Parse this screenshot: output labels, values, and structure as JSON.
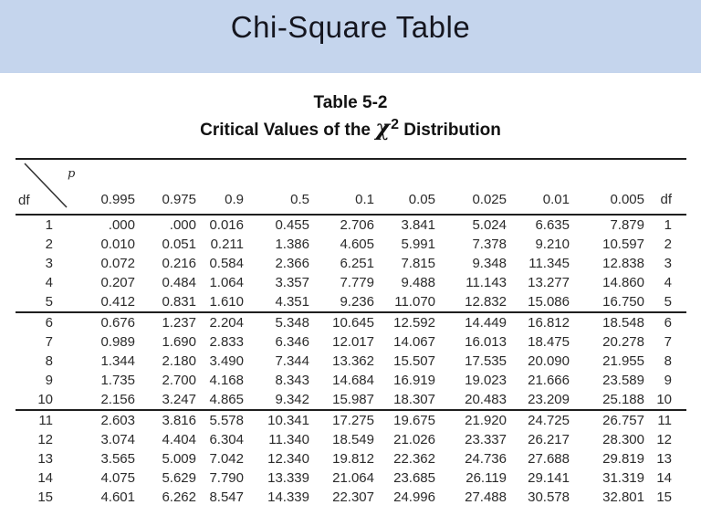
{
  "slide": {
    "title": "Chi-Square Table",
    "band_color": "#c5d5ed"
  },
  "table": {
    "caption_line1": "Table 5-2",
    "caption_line2_prefix": "Critical Values of the ",
    "caption_chi": "χ",
    "caption_sup": "2",
    "caption_line2_suffix": " Distribution",
    "corner": {
      "row_label": "df",
      "col_label": "p"
    },
    "p_headers": [
      "0.995",
      "0.975",
      "0.9",
      "0.5",
      "0.1",
      "0.05",
      "0.025",
      "0.01",
      "0.005"
    ],
    "right_df_header": "df",
    "groups": [
      {
        "rows": [
          {
            "df": "1",
            "values": [
              ".000",
              ".000",
              "0.016",
              "0.455",
              "2.706",
              "3.841",
              "5.024",
              "6.635",
              "7.879"
            ]
          },
          {
            "df": "2",
            "values": [
              "0.010",
              "0.051",
              "0.211",
              "1.386",
              "4.605",
              "5.991",
              "7.378",
              "9.210",
              "10.597"
            ]
          },
          {
            "df": "3",
            "values": [
              "0.072",
              "0.216",
              "0.584",
              "2.366",
              "6.251",
              "7.815",
              "9.348",
              "11.345",
              "12.838"
            ]
          },
          {
            "df": "4",
            "values": [
              "0.207",
              "0.484",
              "1.064",
              "3.357",
              "7.779",
              "9.488",
              "11.143",
              "13.277",
              "14.860"
            ]
          },
          {
            "df": "5",
            "values": [
              "0.412",
              "0.831",
              "1.610",
              "4.351",
              "9.236",
              "11.070",
              "12.832",
              "15.086",
              "16.750"
            ]
          }
        ]
      },
      {
        "rows": [
          {
            "df": "6",
            "values": [
              "0.676",
              "1.237",
              "2.204",
              "5.348",
              "10.645",
              "12.592",
              "14.449",
              "16.812",
              "18.548"
            ]
          },
          {
            "df": "7",
            "values": [
              "0.989",
              "1.690",
              "2.833",
              "6.346",
              "12.017",
              "14.067",
              "16.013",
              "18.475",
              "20.278"
            ]
          },
          {
            "df": "8",
            "values": [
              "1.344",
              "2.180",
              "3.490",
              "7.344",
              "13.362",
              "15.507",
              "17.535",
              "20.090",
              "21.955"
            ]
          },
          {
            "df": "9",
            "values": [
              "1.735",
              "2.700",
              "4.168",
              "8.343",
              "14.684",
              "16.919",
              "19.023",
              "21.666",
              "23.589"
            ]
          },
          {
            "df": "10",
            "values": [
              "2.156",
              "3.247",
              "4.865",
              "9.342",
              "15.987",
              "18.307",
              "20.483",
              "23.209",
              "25.188"
            ]
          }
        ]
      },
      {
        "rows": [
          {
            "df": "11",
            "values": [
              "2.603",
              "3.816",
              "5.578",
              "10.341",
              "17.275",
              "19.675",
              "21.920",
              "24.725",
              "26.757"
            ]
          },
          {
            "df": "12",
            "values": [
              "3.074",
              "4.404",
              "6.304",
              "11.340",
              "18.549",
              "21.026",
              "23.337",
              "26.217",
              "28.300"
            ]
          },
          {
            "df": "13",
            "values": [
              "3.565",
              "5.009",
              "7.042",
              "12.340",
              "19.812",
              "22.362",
              "24.736",
              "27.688",
              "29.819"
            ]
          },
          {
            "df": "14",
            "values": [
              "4.075",
              "5.629",
              "7.790",
              "13.339",
              "21.064",
              "23.685",
              "26.119",
              "29.141",
              "31.319"
            ]
          },
          {
            "df": "15",
            "values": [
              "4.601",
              "6.262",
              "8.547",
              "14.339",
              "22.307",
              "24.996",
              "27.488",
              "30.578",
              "32.801"
            ]
          }
        ]
      }
    ]
  }
}
